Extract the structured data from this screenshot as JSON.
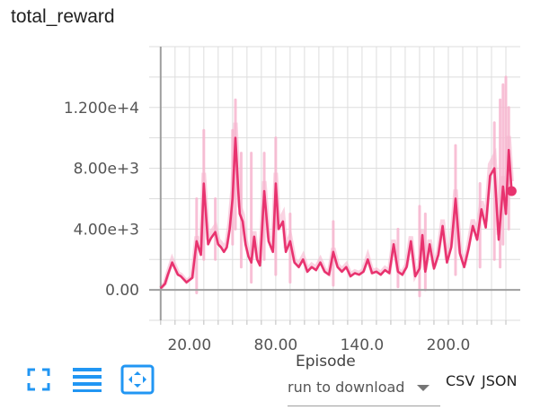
{
  "card": {
    "title": "total_reward"
  },
  "chart_data": {
    "type": "line",
    "x_ticks": [
      "20.00",
      "80.00",
      "140.0",
      "200.0"
    ],
    "x_tick_values": [
      20,
      80,
      140,
      200
    ],
    "y_ticks": [
      "0.00",
      "4.00e+3",
      "8.00e+3",
      "1.200e+4"
    ],
    "y_tick_values": [
      0,
      4000,
      8000,
      12000
    ],
    "xlabel": "Episode",
    "ylabel": "",
    "xlim": [
      -8,
      250
    ],
    "ylim": [
      -2000,
      16000
    ],
    "grid": true,
    "colors": {
      "smoothed": "#e8336f",
      "raw": "#f7b6cf",
      "axis": "#9e9e9e",
      "grid": "#dddddd"
    },
    "series": [
      {
        "kind": "smoothed",
        "x": [
          0,
          3,
          5,
          8,
          12,
          14,
          18,
          22,
          25,
          28,
          30,
          33,
          35,
          38,
          40,
          42,
          44,
          46,
          48,
          50,
          52,
          54,
          55,
          57,
          59,
          61,
          63,
          65,
          67,
          69,
          72,
          75,
          78,
          80,
          82,
          85,
          87,
          90,
          93,
          96,
          99,
          102,
          105,
          108,
          111,
          114,
          117,
          120,
          123,
          126,
          129,
          132,
          135,
          138,
          141,
          144,
          147,
          150,
          153,
          156,
          159,
          162,
          165,
          168,
          171,
          174,
          177,
          180,
          182,
          184,
          187,
          190,
          193,
          196,
          199,
          202,
          205,
          208,
          211,
          214,
          217,
          220,
          223,
          226,
          229,
          232,
          235,
          238,
          240,
          242,
          244
        ],
        "y": [
          100,
          400,
          1000,
          1800,
          1000,
          900,
          500,
          800,
          3200,
          2300,
          7000,
          3000,
          3400,
          3800,
          3000,
          2800,
          2500,
          2800,
          4000,
          6000,
          10000,
          6500,
          5000,
          4500,
          3000,
          2200,
          1800,
          3500,
          2000,
          1600,
          6500,
          3200,
          2500,
          7000,
          4000,
          4500,
          2500,
          3200,
          1800,
          1500,
          2000,
          1200,
          1500,
          1300,
          1800,
          1200,
          1000,
          2500,
          1500,
          1200,
          1500,
          900,
          1100,
          1000,
          1200,
          2000,
          1100,
          1200,
          1000,
          1300,
          1100,
          3000,
          1200,
          1000,
          1500,
          3200,
          900,
          1400,
          3600,
          1200,
          3000,
          1400,
          2300,
          4200,
          1800,
          2800,
          6000,
          2400,
          1500,
          2700,
          4200,
          3300,
          5300,
          4100,
          7500,
          8000,
          3300,
          6800,
          5000,
          9200,
          6500
        ],
        "end_point": {
          "x": 244,
          "y": 6500
        }
      },
      {
        "kind": "raw",
        "segments": [
          {
            "x": 25,
            "y_low": -200,
            "y_high": 6000
          },
          {
            "x": 30,
            "y_low": 2000,
            "y_high": 10500
          },
          {
            "x": 38,
            "y_low": 2000,
            "y_high": 6000
          },
          {
            "x": 50,
            "y_low": 3000,
            "y_high": 10500
          },
          {
            "x": 52,
            "y_low": 4000,
            "y_high": 12500
          },
          {
            "x": 56,
            "y_low": 1500,
            "y_high": 9000
          },
          {
            "x": 63,
            "y_low": 500,
            "y_high": 9000
          },
          {
            "x": 72,
            "y_low": 2000,
            "y_high": 9000
          },
          {
            "x": 80,
            "y_low": 1000,
            "y_high": 10000
          },
          {
            "x": 90,
            "y_low": 500,
            "y_high": 5000
          },
          {
            "x": 120,
            "y_low": 300,
            "y_high": 4500
          },
          {
            "x": 165,
            "y_low": 200,
            "y_high": 4000
          },
          {
            "x": 180,
            "y_low": -400,
            "y_high": 5500
          },
          {
            "x": 184,
            "y_low": 0,
            "y_high": 5000
          },
          {
            "x": 205,
            "y_low": 1000,
            "y_high": 9500
          },
          {
            "x": 222,
            "y_low": 1500,
            "y_high": 7000
          },
          {
            "x": 232,
            "y_low": 2000,
            "y_high": 11000
          },
          {
            "x": 236,
            "y_low": 1500,
            "y_high": 12500
          },
          {
            "x": 238,
            "y_low": 3000,
            "y_high": 13500
          },
          {
            "x": 240,
            "y_low": 5000,
            "y_high": 14000
          },
          {
            "x": 242,
            "y_low": 4000,
            "y_high": 12000
          }
        ]
      }
    ]
  },
  "toolbar": {
    "fullscreen_icon": "fullscreen-icon",
    "log_scale_icon": "list-lines-icon",
    "fit_domain_icon": "fit-to-data-icon",
    "accent_color": "#2196f3"
  },
  "download": {
    "select_value": "run to download",
    "csv_label": "CSV",
    "json_label": "JSON"
  }
}
